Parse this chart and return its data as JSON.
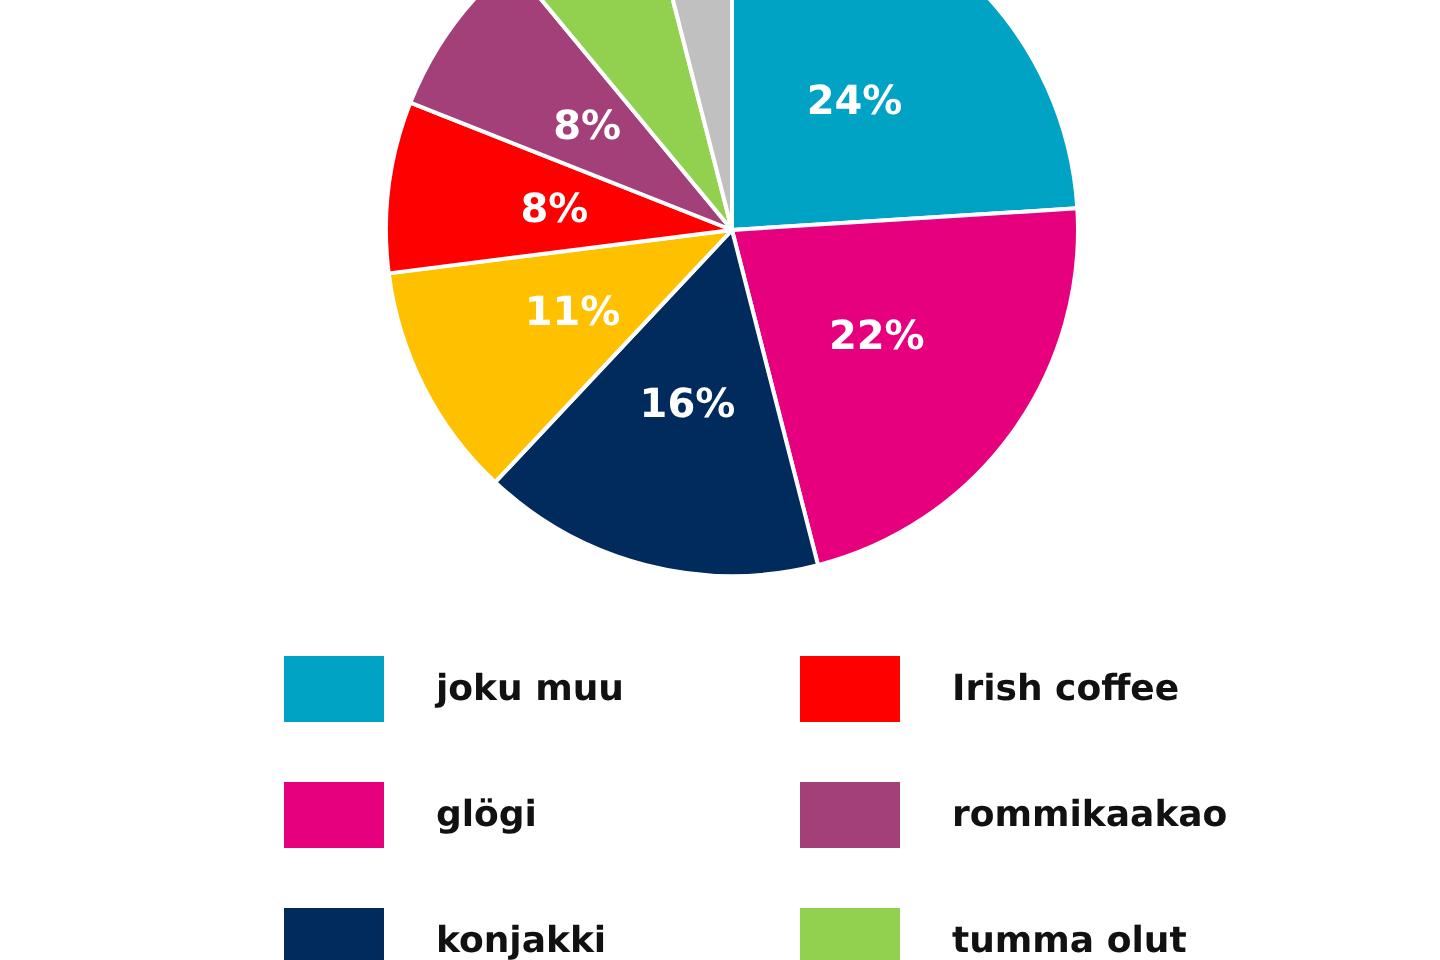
{
  "chart_data": {
    "type": "pie",
    "categories": [
      "joku muu",
      "glögi",
      "konjakki",
      null,
      "Irish coffee",
      "rommikaakao",
      "tumma olut",
      null
    ],
    "values": [
      24,
      22,
      16,
      11,
      8,
      8,
      7,
      4
    ],
    "colors": [
      "#00a3c4",
      "#e6007e",
      "#002b5c",
      "#ffc000",
      "#ff0000",
      "#a3407a",
      "#92d050",
      "#c0c0c0"
    ],
    "value_labels": [
      "24%",
      "22%",
      "16%",
      "11%",
      "8%",
      "8%",
      null,
      null
    ],
    "legend": "bottom"
  }
}
